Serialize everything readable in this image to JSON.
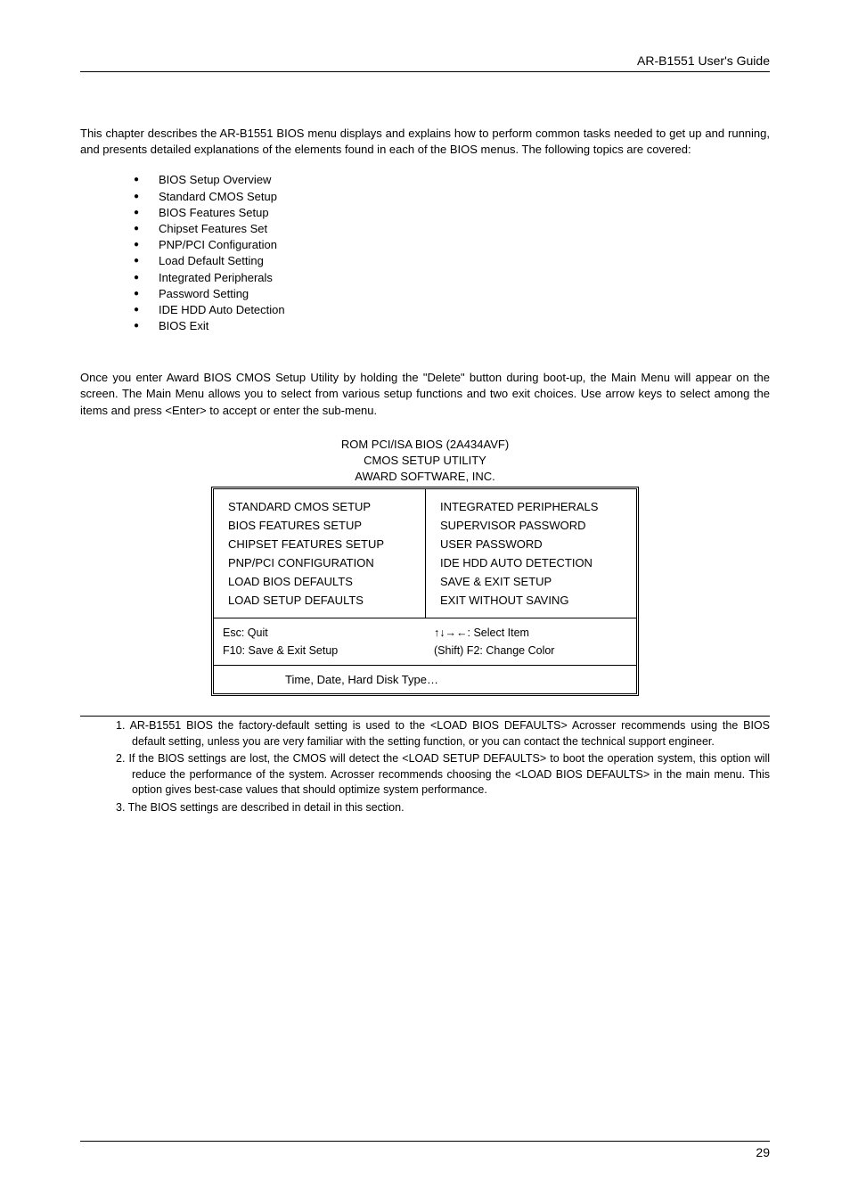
{
  "header": {
    "title": "AR-B1551 User's Guide"
  },
  "intro": "This chapter describes the AR-B1551 BIOS menu displays and explains how to perform common tasks needed to get up and running, and presents detailed explanations of the elements found in each of the BIOS menus.  The following topics are covered:",
  "bullets": [
    "BIOS Setup Overview",
    "Standard CMOS Setup",
    "BIOS Features Setup",
    "Chipset Features Set",
    "PNP/PCI Configuration",
    "Load Default Setting",
    "Integrated Peripherals",
    "Password Setting",
    "IDE HDD Auto Detection",
    "BIOS Exit"
  ],
  "overview": "Once you enter Award BIOS CMOS Setup Utility by holding the \"Delete\" button during boot-up, the Main Menu will appear on the screen.  The Main Menu allows you to select from various setup functions and two exit choices.  Use arrow keys to select among the items and press <Enter> to accept or enter the sub-menu.",
  "bios": {
    "line1": "ROM PCI/ISA BIOS (2A434AVF)",
    "line2": "CMOS SETUP UTILITY",
    "line3": "AWARD SOFTWARE, INC.",
    "left": [
      "STANDARD CMOS SETUP",
      "BIOS FEATURES SETUP",
      "CHIPSET FEATURES SETUP",
      "PNP/PCI CONFIGURATION",
      "LOAD BIOS DEFAULTS",
      "LOAD SETUP DEFAULTS"
    ],
    "right": [
      "INTEGRATED PERIPHERALS",
      "SUPERVISOR PASSWORD",
      "USER PASSWORD",
      "IDE HDD AUTO DETECTION",
      "SAVE & EXIT SETUP",
      "EXIT WITHOUT SAVING"
    ],
    "help_left_1": "Esc:  Quit",
    "help_left_2": "F10:  Save & Exit Setup",
    "help_right_1": "↑↓→←:     Select Item",
    "help_right_2": "(Shift) F2:   Change Color",
    "status": "Time, Date, Hard Disk Type…"
  },
  "notes": {
    "n1": "1. AR-B1551 BIOS the factory-default setting is used to the <LOAD BIOS DEFAULTS> Acrosser recommends using the BIOS default setting, unless you are very familiar with the setting function, or you can contact the technical support engineer.",
    "n2": "2. If the BIOS settings are lost, the CMOS will detect the <LOAD SETUP DEFAULTS> to boot the operation system, this option will reduce the performance of the system.  Acrosser recommends choosing the <LOAD BIOS DEFAULTS> in the main menu. This option gives best-case values that should optimize system performance.",
    "n3": "3. The BIOS settings are described in detail in this section."
  },
  "page_number": "29"
}
